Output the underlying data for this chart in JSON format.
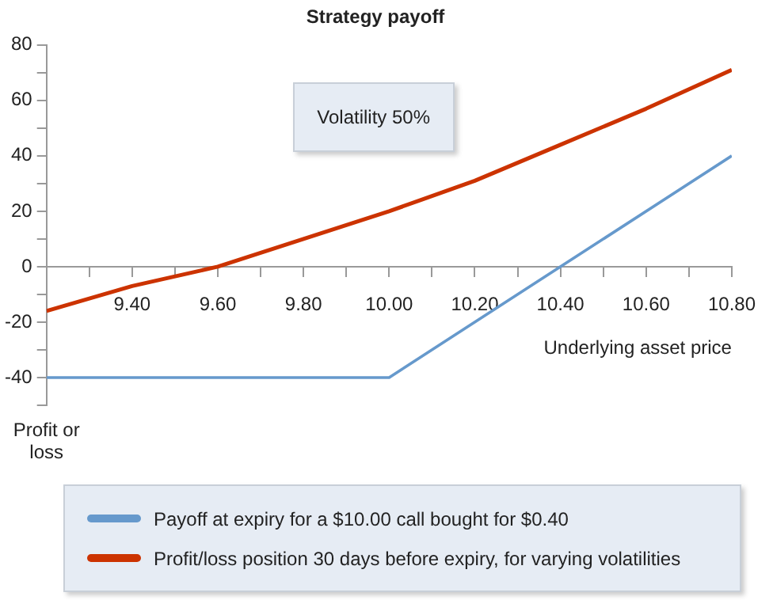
{
  "chart_data": {
    "type": "line",
    "title": "Strategy payoff",
    "xlabel": "Underlying asset price",
    "ylabel": "Profit or loss",
    "annotations": [
      "Volatility 50%"
    ],
    "xlim": [
      9.2,
      10.8
    ],
    "xticks": [
      {
        "value": 9.2,
        "label": null
      },
      {
        "value": 9.3,
        "label": null
      },
      {
        "value": 9.4,
        "label": "9.40"
      },
      {
        "value": 9.5,
        "label": null
      },
      {
        "value": 9.6,
        "label": "9.60"
      },
      {
        "value": 9.7,
        "label": null
      },
      {
        "value": 9.8,
        "label": "9.80"
      },
      {
        "value": 9.9,
        "label": null
      },
      {
        "value": 10.0,
        "label": "10.00"
      },
      {
        "value": 10.1,
        "label": null
      },
      {
        "value": 10.2,
        "label": "10.20"
      },
      {
        "value": 10.3,
        "label": null
      },
      {
        "value": 10.4,
        "label": "10.40"
      },
      {
        "value": 10.5,
        "label": null
      },
      {
        "value": 10.6,
        "label": "10.60"
      },
      {
        "value": 10.7,
        "label": null
      },
      {
        "value": 10.8,
        "label": "10.80"
      }
    ],
    "ylim": [
      -50,
      80
    ],
    "yticks": [
      {
        "value": -50,
        "label": null
      },
      -40,
      {
        "value": -30,
        "label": null
      },
      -20,
      {
        "value": -10,
        "label": null
      },
      0,
      {
        "value": 10,
        "label": null
      },
      20,
      {
        "value": 30,
        "label": null
      },
      40,
      {
        "value": 50,
        "label": null
      },
      60,
      {
        "value": 70,
        "label": null
      },
      80
    ],
    "grid": false,
    "legend": "bottom",
    "marker": "none",
    "line_style": "solid",
    "series": [
      {
        "name": "Payoff at expiry for a $10.00 call bought for $0.40",
        "color": "#6699cc",
        "x": [
          9.2,
          10.0,
          10.8
        ],
        "values": [
          -40,
          -40,
          40
        ]
      },
      {
        "name": "Profit/loss position 30 days before expiry, for varying volatilities",
        "color": "#cc3300",
        "x": [
          9.2,
          9.4,
          9.6,
          9.8,
          10.0,
          10.2,
          10.4,
          10.6,
          10.8
        ],
        "values": [
          -16,
          -7,
          0,
          10,
          20,
          31,
          44,
          57,
          71
        ]
      }
    ]
  }
}
